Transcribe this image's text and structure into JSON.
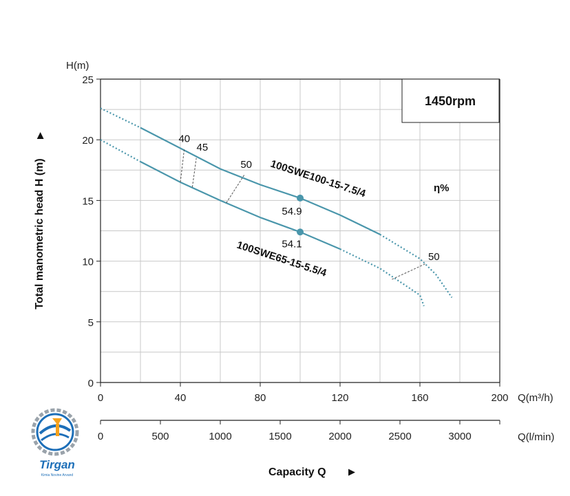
{
  "chart_data": {
    "type": "line",
    "title": "",
    "ylabel": "Total manometric head H (m)",
    "y_unit": "H(m)",
    "x_unit": "Q(m³/h)",
    "x2_unit": "Q(l/min)",
    "xlabel": "Capacity Q",
    "xlim": [
      0,
      200
    ],
    "ylim": [
      0,
      25
    ],
    "x_ticks": [
      "0",
      "40",
      "80",
      "120",
      "160",
      "200"
    ],
    "x_tick_values": [
      0,
      40,
      80,
      120,
      160,
      200
    ],
    "y_ticks": [
      "0",
      "5",
      "10",
      "15",
      "20",
      "25"
    ],
    "y_tick_values": [
      0,
      5,
      10,
      15,
      20,
      25
    ],
    "x2_ticks": [
      "0",
      "500",
      "1000",
      "1500",
      "2000",
      "2500",
      "3000"
    ],
    "x2_tick_values": [
      0,
      500,
      1000,
      1500,
      2000,
      2500,
      3000
    ],
    "grid": true,
    "speed_label": "1450rpm",
    "eff_symbol": "η%",
    "series": [
      {
        "name": "100SWE100-15-7.5/4",
        "dashed_start": [
          [
            0,
            22.6
          ],
          [
            20,
            21.0
          ]
        ],
        "solid": [
          [
            20,
            21.0
          ],
          [
            40,
            19.3
          ],
          [
            60,
            17.6
          ],
          [
            80,
            16.3
          ],
          [
            100,
            15.2
          ],
          [
            120,
            13.8
          ],
          [
            140,
            12.2
          ]
        ],
        "dashed_end": [
          [
            140,
            12.2
          ],
          [
            150,
            11.2
          ],
          [
            160,
            10.2
          ],
          [
            168,
            8.9
          ],
          [
            176,
            7.0
          ]
        ],
        "bep": {
          "x": 100,
          "y": 15.2,
          "label": "54.9"
        }
      },
      {
        "name": "100SWE65-15-5.5/4",
        "dashed_start": [
          [
            0,
            20.0
          ],
          [
            20,
            18.2
          ]
        ],
        "solid": [
          [
            20,
            18.2
          ],
          [
            40,
            16.5
          ],
          [
            60,
            15.0
          ],
          [
            80,
            13.6
          ],
          [
            100,
            12.4
          ],
          [
            120,
            11.0
          ]
        ],
        "dashed_end": [
          [
            120,
            11.0
          ],
          [
            140,
            9.4
          ],
          [
            150,
            8.3
          ],
          [
            160,
            7.2
          ],
          [
            162,
            6.3
          ]
        ],
        "bep": {
          "x": 100,
          "y": 12.4,
          "label": "54.1"
        }
      }
    ],
    "efficiency_lines": [
      {
        "label": "40",
        "from": [
          40,
          16.5
        ],
        "to": [
          42,
          19.3
        ],
        "label_at": [
          42,
          19.8
        ]
      },
      {
        "label": "45",
        "from": [
          46,
          16.1
        ],
        "to": [
          48,
          18.5
        ],
        "label_at": [
          51,
          19.1
        ]
      },
      {
        "label": "50",
        "from": [
          63,
          14.8
        ],
        "to": [
          72,
          17.1
        ],
        "label_at": [
          73,
          17.7
        ]
      },
      {
        "label": "50",
        "from": [
          146,
          8.5
        ],
        "to": [
          163,
          9.8
        ],
        "label_at": [
          167,
          10.1
        ]
      }
    ]
  },
  "logo": {
    "name": "Tirgan",
    "tagline": "Kimia Novine Arvand",
    "colors": {
      "primary": "#1d6fb8",
      "accent": "#f7a21b",
      "gear": "#9aa3ab"
    }
  },
  "colors": {
    "curve": "#4a96ab",
    "grid": "#c8c8c8",
    "axis": "#222222"
  }
}
